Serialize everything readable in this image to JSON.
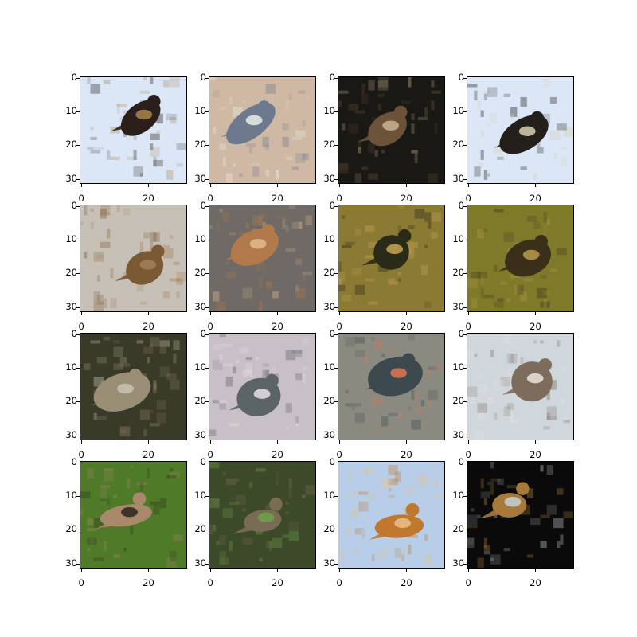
{
  "figure": {
    "y_ticks": [
      "0",
      "10",
      "20",
      "30"
    ],
    "x_ticks": [
      "0",
      "20"
    ],
    "panels": [
      {
        "bg": "#dbe7f7",
        "subject": "#2a1f1a",
        "accent": "#a9854f",
        "desc": "bird-in-flight-dark"
      },
      {
        "bg": "#cfb8a4",
        "subject": "#6d7a8d",
        "accent": "#e8efe8",
        "desc": "bird-gliding-pale"
      },
      {
        "bg": "#1a1814",
        "subject": "#6b5238",
        "accent": "#c9b48f",
        "desc": "bird-perched-dark-frame"
      },
      {
        "bg": "#dbe7f7",
        "subject": "#23201c",
        "accent": "#d8cfb4",
        "desc": "bird-in-flight-dark-2"
      },
      {
        "bg": "#c7c0b6",
        "subject": "#7a5a35",
        "accent": "#a57f56",
        "desc": "bird-standing-brown"
      },
      {
        "bg": "#6f6a66",
        "subject": "#b27a4a",
        "accent": "#e2bb8d",
        "desc": "bird-standing-orange"
      },
      {
        "bg": "#8a7a34",
        "subject": "#2a2a18",
        "accent": "#c9a455",
        "desc": "bird-in-foliage-yellow"
      },
      {
        "bg": "#7e7a2a",
        "subject": "#3a301a",
        "accent": "#b89a4a",
        "desc": "bird-in-foliage-green"
      },
      {
        "bg": "#3a3a28",
        "subject": "#9a8e76",
        "accent": "#c8c3b0",
        "desc": "bird-branch-dark"
      },
      {
        "bg": "#c9bfc7",
        "subject": "#5b6466",
        "accent": "#e7e1e6",
        "desc": "bird-flying-grey"
      },
      {
        "bg": "#8a8a80",
        "subject": "#3c4a50",
        "accent": "#e07650",
        "desc": "bird-dark-blue"
      },
      {
        "bg": "#cfd6dc",
        "subject": "#7d6b5b",
        "accent": "#e7e4dc",
        "desc": "bird-perched-grey"
      },
      {
        "bg": "#4f7a28",
        "subject": "#a8896a",
        "accent": "#2b2520",
        "desc": "bird-green-branch"
      },
      {
        "bg": "#3d4a2a",
        "subject": "#7a6b54",
        "accent": "#6fa24a",
        "desc": "bird-green-dark"
      },
      {
        "bg": "#b7cde8",
        "subject": "#c0772e",
        "accent": "#e9c287",
        "desc": "bird-orange-flight"
      },
      {
        "bg": "#0a0a0a",
        "subject": "#a77a3c",
        "accent": "#c4cfd6",
        "desc": "bird-dark-frame-orange"
      }
    ]
  }
}
